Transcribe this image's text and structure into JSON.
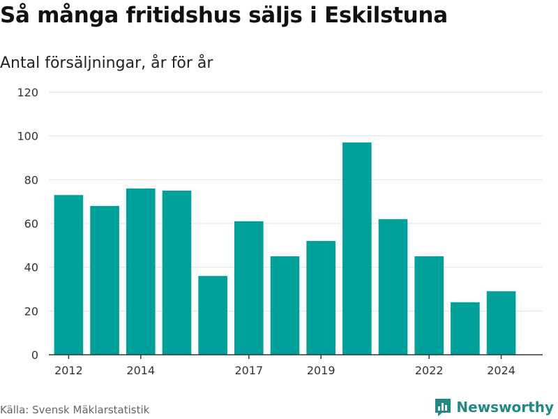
{
  "colors": {
    "bar": "#00a19a",
    "grid": "#e0e0e0",
    "axis": "#333333",
    "brand": "#1f8a83"
  },
  "source": "Källa: Svensk Mäklarstatistik",
  "brand": {
    "name": "Newsworthy",
    "icon": "bar-chart-logo-icon"
  },
  "chart_data": {
    "type": "bar",
    "title": "Så många fritidshus säljs i Eskilstuna",
    "subtitle": "Antal försäljningar, år för år",
    "categories": [
      "2012",
      "2013",
      "2014",
      "2015",
      "2016",
      "2017",
      "2018",
      "2019",
      "2020",
      "2021",
      "2022",
      "2023",
      "2024"
    ],
    "values": [
      73,
      68,
      76,
      75,
      36,
      61,
      45,
      52,
      97,
      62,
      45,
      24,
      29
    ],
    "x_tick_labels": [
      "2012",
      "2014",
      "2017",
      "2019",
      "2022",
      "2024"
    ],
    "y_ticks": [
      0,
      20,
      40,
      60,
      80,
      100,
      120
    ],
    "ylim": [
      0,
      120
    ],
    "xlabel": "",
    "ylabel": "",
    "grid": true
  }
}
